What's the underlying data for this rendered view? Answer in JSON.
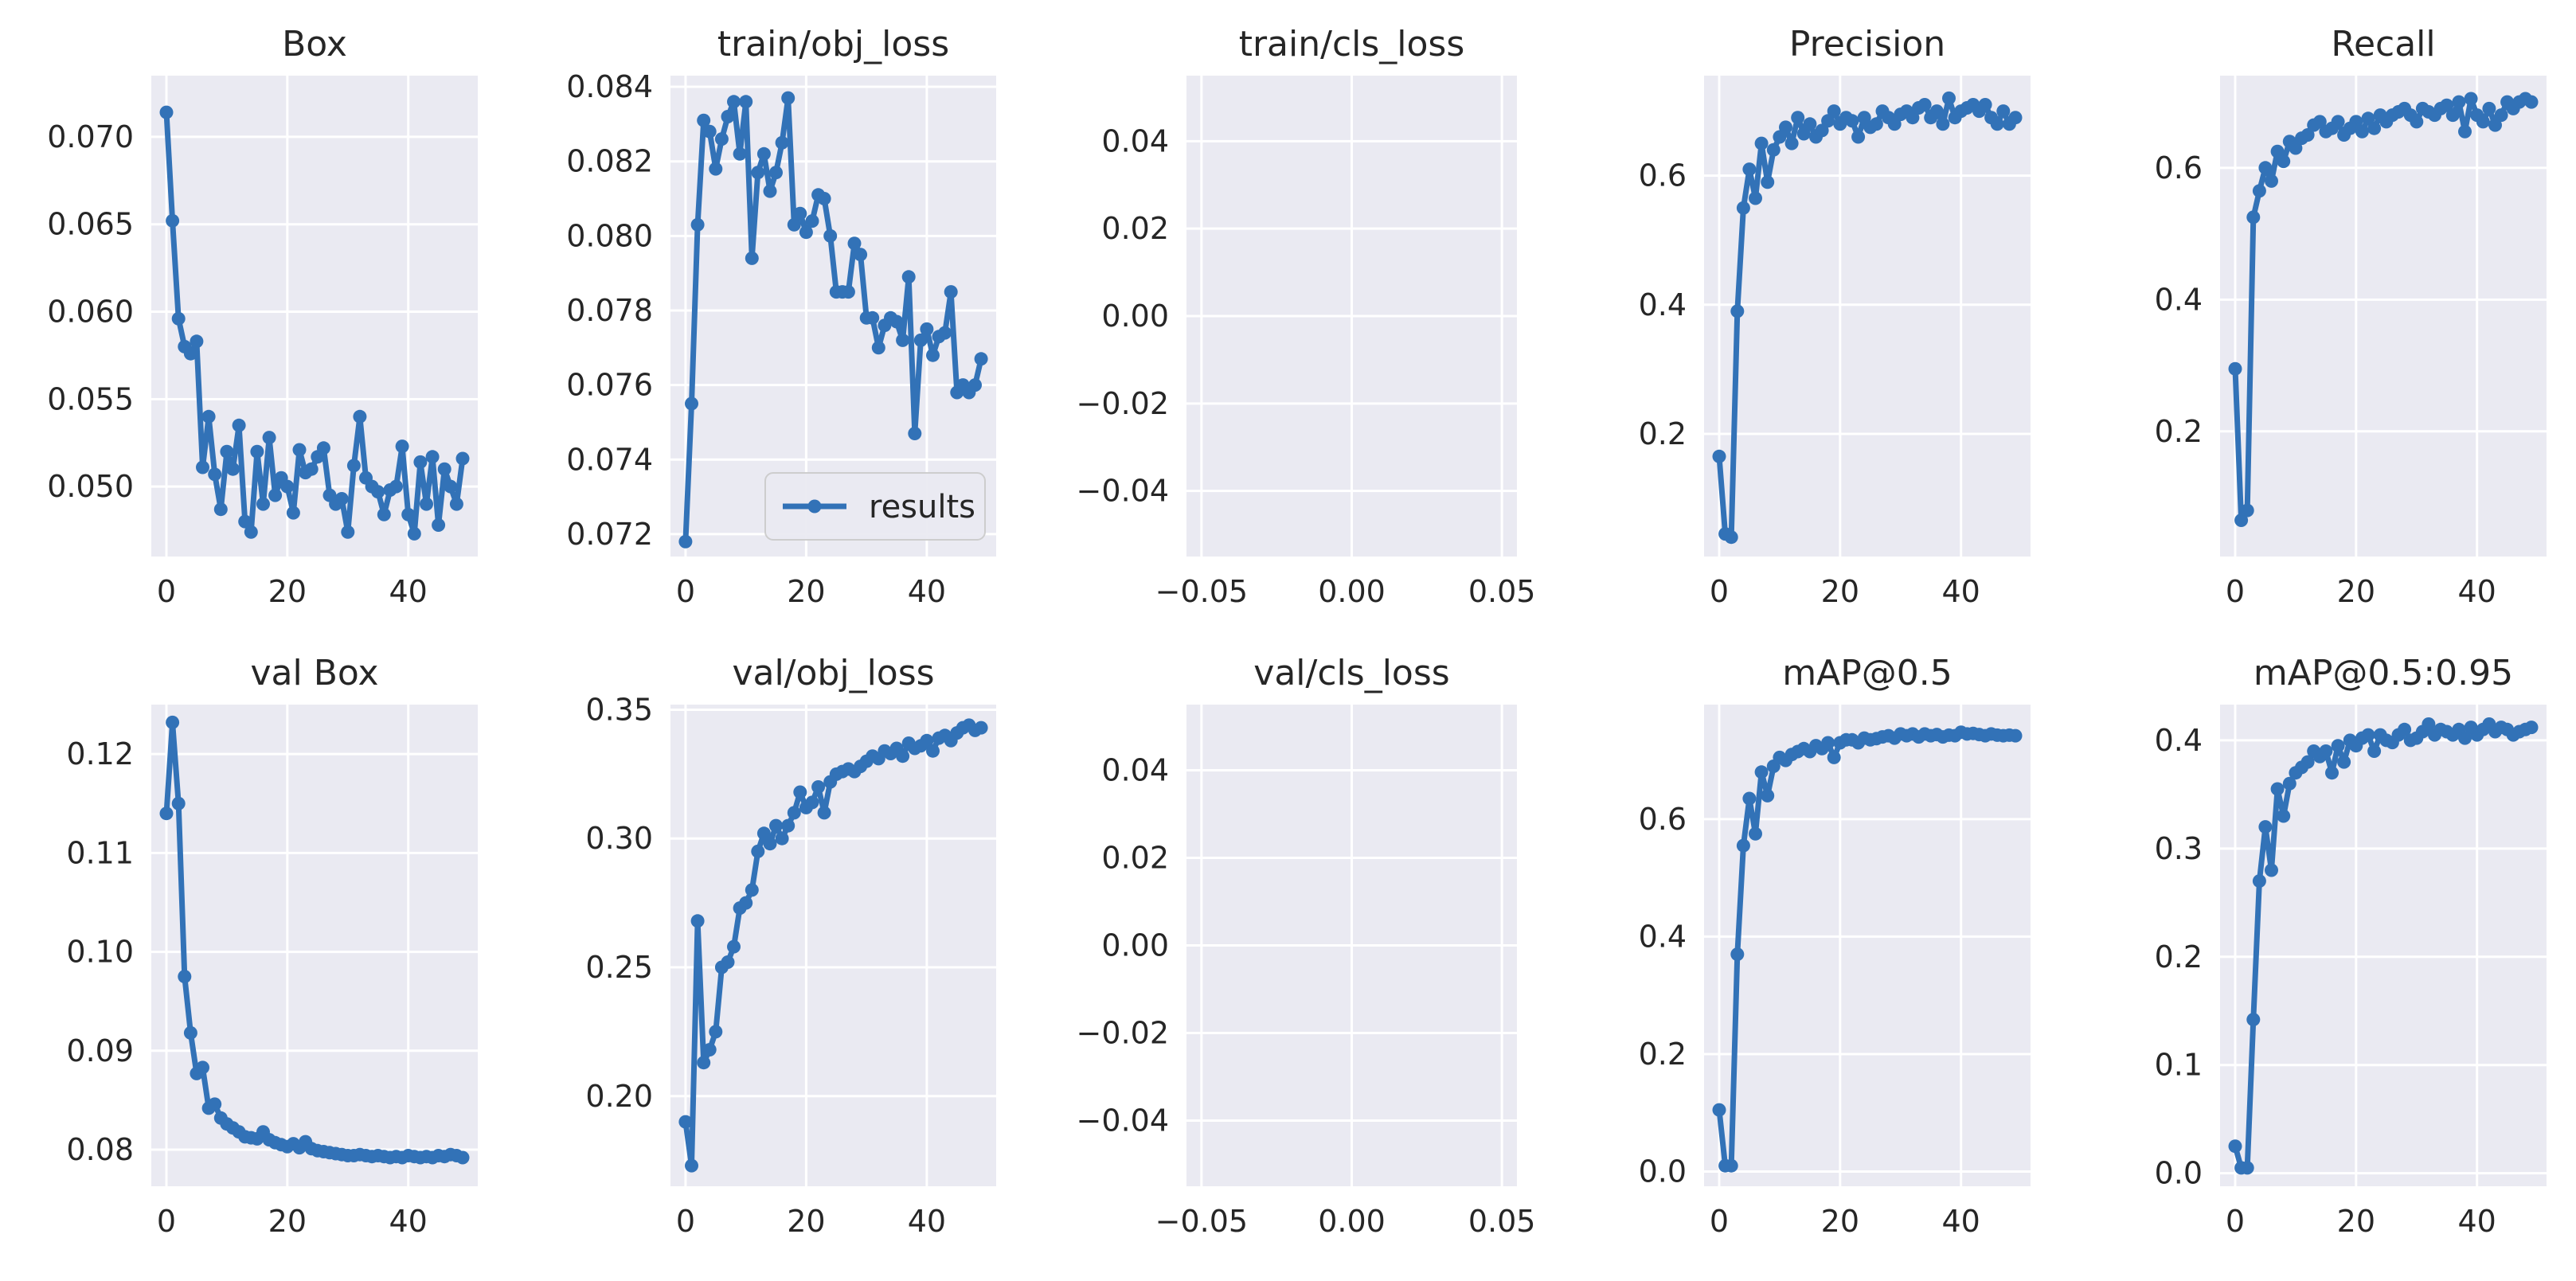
{
  "figure": {
    "background": "#ffffff",
    "plot_bg": "#eaeaf2",
    "grid_color": "#ffffff",
    "series_color": "#3272b7"
  },
  "chart_data": [
    {
      "type": "line",
      "title": "Box",
      "xlabel": "",
      "ylabel": "",
      "xlim": [
        -2.5,
        51.5
      ],
      "ylim": [
        0.046,
        0.0735
      ],
      "xticks": [
        0,
        20,
        40
      ],
      "xtick_labels": [
        "0",
        "20",
        "40"
      ],
      "yticks": [
        0.05,
        0.055,
        0.06,
        0.065,
        0.07
      ],
      "ytick_labels": [
        "0.050",
        "0.055",
        "0.060",
        "0.065",
        "0.070"
      ],
      "grid": true,
      "legend": null,
      "series": [
        {
          "name": "results",
          "values": [
            0.0714,
            0.0652,
            0.0596,
            0.058,
            0.0576,
            0.0583,
            0.0511,
            0.054,
            0.0507,
            0.0487,
            0.052,
            0.051,
            0.0535,
            0.048,
            0.0474,
            0.052,
            0.049,
            0.0528,
            0.0495,
            0.0505,
            0.05,
            0.0485,
            0.0521,
            0.0508,
            0.051,
            0.0517,
            0.0522,
            0.0495,
            0.049,
            0.0493,
            0.0474,
            0.0512,
            0.054,
            0.0505,
            0.05,
            0.0497,
            0.0484,
            0.0498,
            0.05,
            0.0523,
            0.0484,
            0.0473,
            0.0514,
            0.049,
            0.0517,
            0.0478,
            0.051,
            0.05,
            0.049,
            0.0516
          ]
        }
      ]
    },
    {
      "type": "line",
      "title": "train/obj_loss",
      "xlabel": "",
      "ylabel": "",
      "xlim": [
        -2.5,
        51.5
      ],
      "ylim": [
        0.0714,
        0.0843
      ],
      "xticks": [
        0,
        20,
        40
      ],
      "xtick_labels": [
        "0",
        "20",
        "40"
      ],
      "yticks": [
        0.072,
        0.074,
        0.076,
        0.078,
        0.08,
        0.082,
        0.084
      ],
      "ytick_labels": [
        "0.072",
        "0.074",
        "0.076",
        "0.078",
        "0.080",
        "0.082",
        "0.084"
      ],
      "grid": true,
      "legend": {
        "label": "results",
        "location": "lower-right"
      },
      "series": [
        {
          "name": "results",
          "values": [
            0.0718,
            0.0755,
            0.0803,
            0.0831,
            0.0828,
            0.0818,
            0.0826,
            0.0832,
            0.0836,
            0.0822,
            0.0836,
            0.0794,
            0.0817,
            0.0822,
            0.0812,
            0.0817,
            0.0825,
            0.0837,
            0.0803,
            0.0806,
            0.0801,
            0.0804,
            0.0811,
            0.081,
            0.08,
            0.0785,
            0.0785,
            0.0785,
            0.0798,
            0.0795,
            0.0778,
            0.0778,
            0.077,
            0.0776,
            0.0778,
            0.0777,
            0.0772,
            0.0789,
            0.0747,
            0.0772,
            0.0775,
            0.0768,
            0.0773,
            0.0774,
            0.0785,
            0.0758,
            0.076,
            0.0758,
            0.076,
            0.0767
          ]
        }
      ]
    },
    {
      "type": "line",
      "title": "train/cls_loss",
      "xlabel": "",
      "ylabel": "",
      "xlim": [
        -0.055,
        0.055
      ],
      "ylim": [
        -0.055,
        0.055
      ],
      "xticks": [
        -0.05,
        0.0,
        0.05
      ],
      "xtick_labels": [
        "−0.05",
        "0.00",
        "0.05"
      ],
      "yticks": [
        -0.04,
        -0.02,
        0.0,
        0.02,
        0.04
      ],
      "ytick_labels": [
        "−0.04",
        "−0.02",
        "0.00",
        "0.02",
        "0.04"
      ],
      "grid": true,
      "legend": null,
      "series": [
        {
          "name": "results",
          "values": []
        }
      ]
    },
    {
      "type": "line",
      "title": "Precision",
      "xlabel": "",
      "ylabel": "",
      "xlim": [
        -2.5,
        51.5
      ],
      "ylim": [
        0.01,
        0.755
      ],
      "xticks": [
        0,
        20,
        40
      ],
      "xtick_labels": [
        "0",
        "20",
        "40"
      ],
      "yticks": [
        0.2,
        0.4,
        0.6
      ],
      "ytick_labels": [
        "0.2",
        "0.4",
        "0.6"
      ],
      "grid": true,
      "legend": null,
      "series": [
        {
          "name": "results",
          "values": [
            0.165,
            0.045,
            0.04,
            0.39,
            0.55,
            0.61,
            0.565,
            0.65,
            0.59,
            0.64,
            0.66,
            0.675,
            0.65,
            0.69,
            0.665,
            0.68,
            0.66,
            0.67,
            0.685,
            0.7,
            0.68,
            0.69,
            0.685,
            0.66,
            0.69,
            0.675,
            0.68,
            0.7,
            0.69,
            0.68,
            0.695,
            0.7,
            0.69,
            0.705,
            0.71,
            0.69,
            0.7,
            0.68,
            0.72,
            0.69,
            0.7,
            0.705,
            0.71,
            0.7,
            0.71,
            0.69,
            0.68,
            0.7,
            0.68,
            0.69
          ]
        }
      ]
    },
    {
      "type": "line",
      "title": "Recall",
      "xlabel": "",
      "ylabel": "",
      "xlim": [
        -2.5,
        51.5
      ],
      "ylim": [
        0.01,
        0.74
      ],
      "xticks": [
        0,
        20,
        40
      ],
      "xtick_labels": [
        "0",
        "20",
        "40"
      ],
      "yticks": [
        0.2,
        0.4,
        0.6
      ],
      "ytick_labels": [
        "0.2",
        "0.4",
        "0.6"
      ],
      "grid": true,
      "legend": null,
      "series": [
        {
          "name": "results",
          "values": [
            0.295,
            0.065,
            0.08,
            0.525,
            0.565,
            0.6,
            0.58,
            0.625,
            0.61,
            0.64,
            0.63,
            0.645,
            0.65,
            0.665,
            0.67,
            0.655,
            0.66,
            0.67,
            0.65,
            0.66,
            0.67,
            0.655,
            0.675,
            0.66,
            0.68,
            0.67,
            0.68,
            0.685,
            0.69,
            0.68,
            0.67,
            0.69,
            0.685,
            0.68,
            0.69,
            0.695,
            0.68,
            0.7,
            0.655,
            0.705,
            0.68,
            0.67,
            0.69,
            0.665,
            0.68,
            0.7,
            0.69,
            0.7,
            0.705,
            0.7
          ]
        }
      ]
    },
    {
      "type": "line",
      "title": "val Box",
      "xlabel": "",
      "ylabel": "",
      "xlim": [
        -2.5,
        51.5
      ],
      "ylim": [
        0.0763,
        0.125
      ],
      "xticks": [
        0,
        20,
        40
      ],
      "xtick_labels": [
        "0",
        "20",
        "40"
      ],
      "yticks": [
        0.08,
        0.09,
        0.1,
        0.11,
        0.12
      ],
      "ytick_labels": [
        "0.08",
        "0.09",
        "0.10",
        "0.11",
        "0.12"
      ],
      "grid": true,
      "legend": null,
      "series": [
        {
          "name": "results",
          "values": [
            0.114,
            0.1232,
            0.115,
            0.0975,
            0.0918,
            0.0877,
            0.0883,
            0.0842,
            0.0846,
            0.0832,
            0.0826,
            0.0822,
            0.0818,
            0.0813,
            0.0812,
            0.0811,
            0.0818,
            0.081,
            0.0807,
            0.0805,
            0.0803,
            0.0806,
            0.0802,
            0.0808,
            0.0801,
            0.0799,
            0.0798,
            0.0797,
            0.0796,
            0.0795,
            0.0794,
            0.0794,
            0.0795,
            0.0794,
            0.0793,
            0.0794,
            0.0793,
            0.0792,
            0.0793,
            0.0792,
            0.0794,
            0.0793,
            0.0792,
            0.0793,
            0.0792,
            0.0794,
            0.0793,
            0.0795,
            0.0794,
            0.0792
          ]
        }
      ]
    },
    {
      "type": "line",
      "title": "val/obj_loss",
      "xlabel": "",
      "ylabel": "",
      "xlim": [
        -2.5,
        51.5
      ],
      "ylim": [
        0.165,
        0.352
      ],
      "xticks": [
        0,
        20,
        40
      ],
      "xtick_labels": [
        "0",
        "20",
        "40"
      ],
      "yticks": [
        0.2,
        0.25,
        0.3,
        0.35
      ],
      "ytick_labels": [
        "0.20",
        "0.25",
        "0.30",
        "0.35"
      ],
      "grid": true,
      "legend": null,
      "series": [
        {
          "name": "results",
          "values": [
            0.19,
            0.173,
            0.268,
            0.213,
            0.218,
            0.225,
            0.25,
            0.252,
            0.258,
            0.273,
            0.275,
            0.28,
            0.295,
            0.302,
            0.298,
            0.305,
            0.3,
            0.305,
            0.31,
            0.318,
            0.312,
            0.314,
            0.32,
            0.31,
            0.322,
            0.325,
            0.326,
            0.327,
            0.326,
            0.328,
            0.33,
            0.332,
            0.331,
            0.334,
            0.333,
            0.335,
            0.332,
            0.337,
            0.335,
            0.336,
            0.338,
            0.334,
            0.339,
            0.34,
            0.338,
            0.341,
            0.343,
            0.344,
            0.342,
            0.343
          ]
        }
      ]
    },
    {
      "type": "line",
      "title": "val/cls_loss",
      "xlabel": "",
      "ylabel": "",
      "xlim": [
        -0.055,
        0.055
      ],
      "ylim": [
        -0.055,
        0.055
      ],
      "xticks": [
        -0.05,
        0.0,
        0.05
      ],
      "xtick_labels": [
        "−0.05",
        "0.00",
        "0.05"
      ],
      "yticks": [
        -0.04,
        -0.02,
        0.0,
        0.02,
        0.04
      ],
      "ytick_labels": [
        "−0.04",
        "−0.02",
        "0.00",
        "0.02",
        "0.04"
      ],
      "grid": true,
      "legend": null,
      "series": [
        {
          "name": "results",
          "values": []
        }
      ]
    },
    {
      "type": "line",
      "title": "mAP@0.5",
      "xlabel": "",
      "ylabel": "",
      "xlim": [
        -2.5,
        51.5
      ],
      "ylim": [
        -0.025,
        0.795
      ],
      "xticks": [
        0,
        20,
        40
      ],
      "xtick_labels": [
        "0",
        "20",
        "40"
      ],
      "yticks": [
        0.0,
        0.2,
        0.4,
        0.6
      ],
      "ytick_labels": [
        "0.0",
        "0.2",
        "0.4",
        "0.6"
      ],
      "grid": true,
      "legend": null,
      "series": [
        {
          "name": "results",
          "values": [
            0.105,
            0.01,
            0.01,
            0.37,
            0.555,
            0.635,
            0.575,
            0.68,
            0.64,
            0.69,
            0.705,
            0.7,
            0.71,
            0.715,
            0.72,
            0.715,
            0.725,
            0.72,
            0.73,
            0.705,
            0.73,
            0.735,
            0.735,
            0.73,
            0.738,
            0.735,
            0.737,
            0.74,
            0.742,
            0.738,
            0.745,
            0.742,
            0.745,
            0.74,
            0.745,
            0.742,
            0.744,
            0.74,
            0.743,
            0.742,
            0.748,
            0.745,
            0.746,
            0.744,
            0.742,
            0.745,
            0.743,
            0.742,
            0.743,
            0.742
          ]
        }
      ]
    },
    {
      "type": "line",
      "title": "mAP@0.5:0.95",
      "xlabel": "",
      "ylabel": "",
      "xlim": [
        -2.5,
        51.5
      ],
      "ylim": [
        -0.012,
        0.433
      ],
      "xticks": [
        0,
        20,
        40
      ],
      "xtick_labels": [
        "0",
        "20",
        "40"
      ],
      "yticks": [
        0.0,
        0.1,
        0.2,
        0.3,
        0.4
      ],
      "ytick_labels": [
        "0.0",
        "0.1",
        "0.2",
        "0.3",
        "0.4"
      ],
      "grid": true,
      "legend": null,
      "series": [
        {
          "name": "results",
          "values": [
            0.025,
            0.005,
            0.005,
            0.142,
            0.27,
            0.32,
            0.28,
            0.355,
            0.33,
            0.36,
            0.37,
            0.375,
            0.38,
            0.39,
            0.385,
            0.39,
            0.37,
            0.395,
            0.38,
            0.4,
            0.395,
            0.402,
            0.405,
            0.39,
            0.405,
            0.4,
            0.398,
            0.405,
            0.41,
            0.4,
            0.402,
            0.408,
            0.415,
            0.405,
            0.41,
            0.408,
            0.405,
            0.41,
            0.402,
            0.412,
            0.405,
            0.41,
            0.415,
            0.408,
            0.412,
            0.41,
            0.405,
            0.408,
            0.41,
            0.412
          ]
        }
      ]
    }
  ]
}
